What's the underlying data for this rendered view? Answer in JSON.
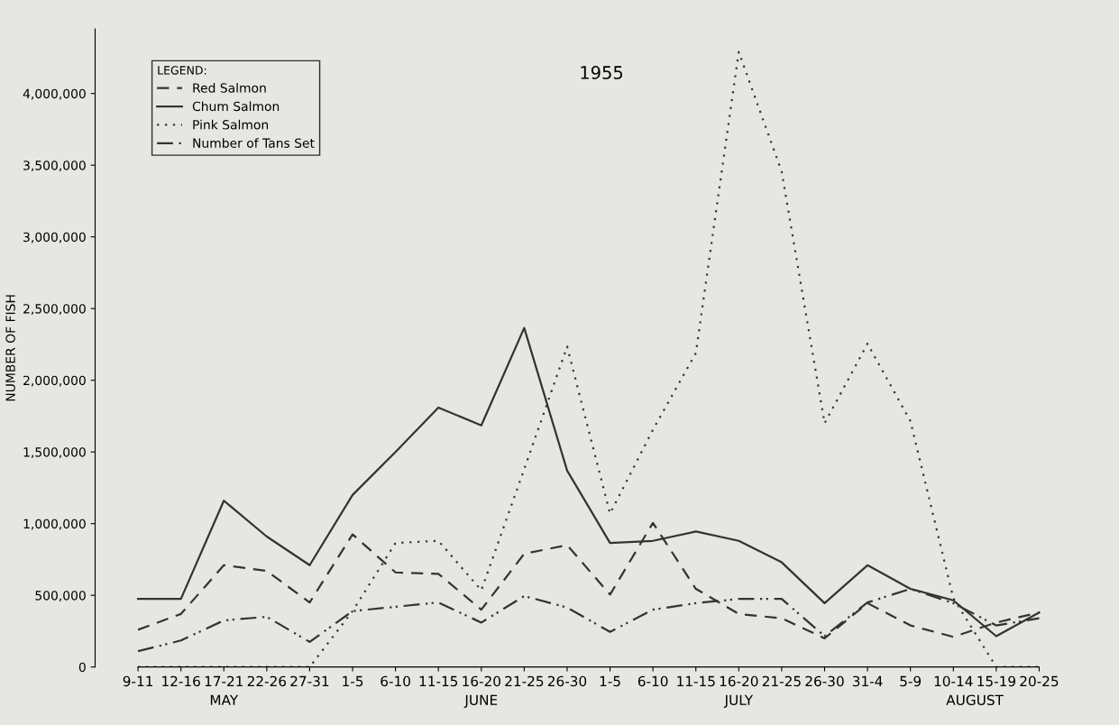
{
  "chart_data": {
    "type": "line",
    "title": "1955",
    "ylabel": "NUMBER OF FISH",
    "legend_title": "LEGEND:",
    "legend": "top left",
    "grid": false,
    "marker": "none",
    "categories": [
      "9-11",
      "12-16",
      "17-21",
      "22-26",
      "27-31",
      "1-5",
      "6-10",
      "11-15",
      "16-20",
      "21-25",
      "26-30",
      "1-5",
      "6-10",
      "11-15",
      "16-20",
      "21-25",
      "26-30",
      "31-4",
      "5-9",
      "10-14",
      "15-19",
      "20-25"
    ],
    "series": [
      {
        "name": "Red Salmon",
        "color": "#333333",
        "line_style": "dashed",
        "values": [
          260000,
          370000,
          710000,
          670000,
          450000,
          925000,
          660000,
          650000,
          400000,
          790000,
          850000,
          505000,
          1005000,
          545000,
          370000,
          340000,
          200000,
          445000,
          290000,
          210000,
          310000,
          380000
        ]
      },
      {
        "name": "Chum Salmon",
        "color": "#333333",
        "line_style": "solid",
        "values": [
          475000,
          475000,
          1160000,
          910000,
          710000,
          1200000,
          1500000,
          1810000,
          1685000,
          2365000,
          1370000,
          865000,
          880000,
          945000,
          880000,
          730000,
          445000,
          710000,
          545000,
          465000,
          215000,
          380000
        ]
      },
      {
        "name": "Pink Salmon",
        "color": "#333333",
        "line_style": "dotted",
        "values": [
          0,
          0,
          0,
          0,
          0,
          390000,
          865000,
          880000,
          535000,
          1380000,
          2235000,
          1070000,
          1655000,
          2190000,
          4290000,
          3455000,
          1700000,
          2255000,
          1715000,
          480000,
          0,
          0
        ]
      },
      {
        "name": "Number of Tans Set",
        "color": "#333333",
        "line_style": "dashdot",
        "values": [
          110000,
          185000,
          325000,
          350000,
          175000,
          390000,
          420000,
          450000,
          310000,
          495000,
          415000,
          245000,
          400000,
          445000,
          475000,
          475000,
          215000,
          450000,
          545000,
          445000,
          290000,
          340000
        ]
      }
    ],
    "ylim": [
      0,
      4450000
    ],
    "yticks": [
      {
        "value": 0,
        "label": "0"
      },
      {
        "value": 500000,
        "label": "500,000"
      },
      {
        "value": 1000000,
        "label": "1,000,000"
      },
      {
        "value": 1500000,
        "label": "1,500,000"
      },
      {
        "value": 2000000,
        "label": "2,000,000"
      },
      {
        "value": 2500000,
        "label": "2,500,000"
      },
      {
        "value": 3000000,
        "label": "3,000,000"
      },
      {
        "value": 3500000,
        "label": "3,500,000"
      },
      {
        "value": 4000000,
        "label": "4,000,000"
      }
    ],
    "annotations": [
      "MAY",
      "JUNE",
      "JULY",
      "AUGUST"
    ]
  }
}
